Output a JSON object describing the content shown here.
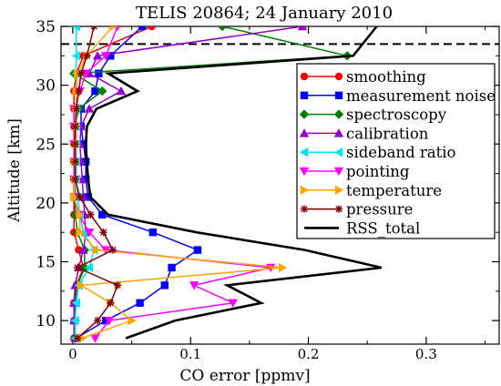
{
  "chart_data": {
    "type": "line",
    "title": "TELIS 20864; 24 January 2010",
    "xlabel": "CO error [ppmv]",
    "ylabel": "Altitude [km]",
    "xlim": [
      -0.01,
      0.362
    ],
    "ylim": [
      8,
      35
    ],
    "xticks": [
      0,
      0.1,
      0.2,
      0.3
    ],
    "xtick_labels": [
      "0",
      "0.1",
      "0.2",
      "0.3"
    ],
    "yticks": [
      10,
      15,
      20,
      25,
      30,
      35
    ],
    "ytick_labels": [
      "10",
      "15",
      "20",
      "25",
      "30",
      "35"
    ],
    "grid": false,
    "legend_position": "right",
    "reference_line": {
      "y": 33.5,
      "style": "dashed"
    },
    "series": [
      {
        "name": "smoothing",
        "color": "#ff0000",
        "marker": "circle",
        "points": [
          [
            0.001,
            8.5
          ],
          [
            0.001,
            10
          ],
          [
            0.001,
            11.5
          ],
          [
            0.003,
            13
          ],
          [
            0.009,
            14.5
          ],
          [
            0.005,
            16
          ],
          [
            0.001,
            17.5
          ],
          [
            0.001,
            19
          ],
          [
            0.001,
            20.5
          ],
          [
            0.001,
            22
          ],
          [
            0.001,
            23.5
          ],
          [
            0.001,
            25
          ],
          [
            0.001,
            26.5
          ],
          [
            0.001,
            28
          ],
          [
            0.001,
            29.5
          ],
          [
            0.003,
            31
          ],
          [
            0.009,
            32.5
          ],
          [
            0.067,
            35
          ]
        ]
      },
      {
        "name": "measurement noise",
        "color": "#0000ff",
        "marker": "square",
        "points": [
          [
            0.003,
            8.5
          ],
          [
            0.028,
            10
          ],
          [
            0.057,
            11.5
          ],
          [
            0.078,
            13
          ],
          [
            0.084,
            14.5
          ],
          [
            0.106,
            16
          ],
          [
            0.068,
            17.5
          ],
          [
            0.025,
            19
          ],
          [
            0.013,
            20.5
          ],
          [
            0.011,
            22
          ],
          [
            0.011,
            23.5
          ],
          [
            0.009,
            25
          ],
          [
            0.007,
            26.5
          ],
          [
            0.007,
            28
          ],
          [
            0.019,
            29.5
          ],
          [
            0.022,
            31
          ],
          [
            0.032,
            32.5
          ],
          [
            0.059,
            35
          ]
        ]
      },
      {
        "name": "spectroscopy",
        "color": "#008000",
        "marker": "diamond",
        "points": [
          [
            0.002,
            8.5
          ],
          [
            0.002,
            10
          ],
          [
            0.002,
            11.5
          ],
          [
            0.004,
            13
          ],
          [
            0.01,
            14.5
          ],
          [
            0.01,
            16
          ],
          [
            0.004,
            17.5
          ],
          [
            0.002,
            19
          ],
          [
            0.002,
            20.5
          ],
          [
            0.002,
            22
          ],
          [
            0.002,
            23.5
          ],
          [
            0.002,
            25
          ],
          [
            0.002,
            26.5
          ],
          [
            0.005,
            28
          ],
          [
            0.025,
            29.5
          ],
          [
            0.001,
            31
          ],
          [
            0.233,
            32.5
          ],
          [
            0.127,
            35
          ]
        ]
      },
      {
        "name": "calibration",
        "color": "#9400d3",
        "marker": "triangle-up",
        "points": [
          [
            0.002,
            8.5
          ],
          [
            0.001,
            10
          ],
          [
            0.001,
            11.5
          ],
          [
            0.002,
            13
          ],
          [
            0.005,
            14.5
          ],
          [
            0.009,
            16
          ],
          [
            0.011,
            17.5
          ],
          [
            0.01,
            19
          ],
          [
            0.009,
            20.5
          ],
          [
            0.008,
            22
          ],
          [
            0.007,
            23.5
          ],
          [
            0.006,
            25
          ],
          [
            0.007,
            26.5
          ],
          [
            0.014,
            28
          ],
          [
            0.041,
            29.5
          ],
          [
            0.014,
            31
          ],
          [
            0.021,
            32.5
          ],
          [
            0.195,
            35
          ]
        ]
      },
      {
        "name": "sideband ratio",
        "color": "#00e5ee",
        "marker": "triangle-left",
        "points": [
          [
            0.002,
            8.5
          ],
          [
            0.002,
            10
          ],
          [
            0.003,
            11.5
          ],
          [
            0.005,
            13
          ],
          [
            0.014,
            14.5
          ],
          [
            0.018,
            16
          ],
          [
            0.009,
            17.5
          ],
          [
            0.006,
            19
          ],
          [
            0.004,
            20.5
          ],
          [
            0.003,
            22
          ],
          [
            0.003,
            23.5
          ],
          [
            0.003,
            25
          ],
          [
            0.003,
            26.5
          ],
          [
            0.003,
            28
          ],
          [
            0.003,
            29.5
          ],
          [
            0.003,
            31
          ],
          [
            0.003,
            32.5
          ],
          [
            0.003,
            35
          ]
        ]
      },
      {
        "name": "pointing",
        "color": "#ff00ff",
        "marker": "triangle-down",
        "points": [
          [
            0.019,
            8.5
          ],
          [
            0.031,
            10
          ],
          [
            0.136,
            11.5
          ],
          [
            0.103,
            13
          ],
          [
            0.168,
            14.5
          ],
          [
            0.028,
            16
          ],
          [
            0.014,
            17.5
          ],
          [
            0.005,
            19
          ],
          [
            0.001,
            20.5
          ],
          [
            0.001,
            22
          ],
          [
            0.001,
            23.5
          ],
          [
            0.001,
            25
          ],
          [
            0.001,
            26.5
          ],
          [
            0.001,
            28
          ],
          [
            0.006,
            29.5
          ],
          [
            0.011,
            31
          ],
          [
            0.028,
            32.5
          ],
          [
            0.038,
            35
          ]
        ]
      },
      {
        "name": "temperature",
        "color": "#ffa500",
        "marker": "triangle-right",
        "points": [
          [
            0.008,
            8.5
          ],
          [
            0.05,
            10
          ],
          [
            0.032,
            11.5
          ],
          [
            0.007,
            13
          ],
          [
            0.178,
            14.5
          ],
          [
            0.02,
            16
          ],
          [
            0.006,
            17.5
          ],
          [
            0.006,
            19
          ],
          [
            0.001,
            20.5
          ],
          [
            0.002,
            22
          ],
          [
            0.002,
            23.5
          ],
          [
            0.003,
            25
          ],
          [
            0.003,
            26.5
          ],
          [
            0.003,
            28
          ],
          [
            0.003,
            29.5
          ],
          [
            0.004,
            31
          ],
          [
            0.012,
            32.5
          ],
          [
            0.034,
            35
          ]
        ]
      },
      {
        "name": "pressure",
        "color": "#800000",
        "marker": "asterisk",
        "points": [
          [
            0.004,
            8.5
          ],
          [
            0.021,
            10
          ],
          [
            0.032,
            11.5
          ],
          [
            0.038,
            13
          ],
          [
            0.004,
            14.5
          ],
          [
            0.034,
            16
          ],
          [
            0.026,
            17.5
          ],
          [
            0.015,
            19
          ],
          [
            0.006,
            20.5
          ],
          [
            0.002,
            22
          ],
          [
            0.002,
            23.5
          ],
          [
            0.002,
            25
          ],
          [
            0.002,
            26.5
          ],
          [
            0.003,
            28
          ],
          [
            0.005,
            29.5
          ],
          [
            0.007,
            31
          ],
          [
            0.012,
            32.5
          ],
          [
            0.018,
            35
          ]
        ]
      },
      {
        "name": "RSS_total",
        "color": "#000000",
        "marker": "none",
        "points": [
          [
            0.045,
            8.5
          ],
          [
            0.087,
            10
          ],
          [
            0.16,
            11.5
          ],
          [
            0.131,
            13
          ],
          [
            0.262,
            14.5
          ],
          [
            0.197,
            16
          ],
          [
            0.105,
            17.5
          ],
          [
            0.03,
            19
          ],
          [
            0.015,
            20.5
          ],
          [
            0.013,
            22
          ],
          [
            0.012,
            23.5
          ],
          [
            0.011,
            25
          ],
          [
            0.012,
            26.5
          ],
          [
            0.02,
            28
          ],
          [
            0.055,
            29.5
          ],
          [
            0.03,
            31
          ],
          [
            0.238,
            32.5
          ],
          [
            0.262,
            35.5
          ]
        ]
      }
    ]
  }
}
